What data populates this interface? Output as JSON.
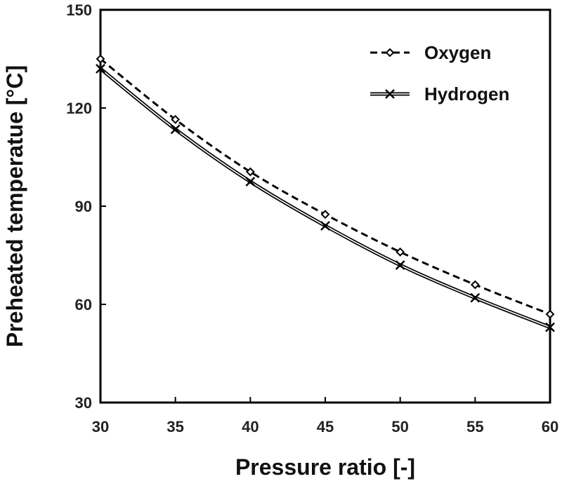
{
  "chart_data": {
    "type": "line",
    "title": "",
    "xlabel": "Pressure ratio [-]",
    "ylabel": "Preheated temperatue [°C]",
    "xlim": [
      30,
      60
    ],
    "ylim": [
      30,
      150
    ],
    "xticks": [
      30,
      35,
      40,
      45,
      50,
      55,
      60
    ],
    "yticks": [
      30,
      60,
      90,
      120,
      150
    ],
    "grid": false,
    "legend_position": "top-right",
    "x": [
      30,
      35,
      40,
      45,
      50,
      55,
      60
    ],
    "series": [
      {
        "name": "Oxygen",
        "marker": "diamond",
        "line": "dashed",
        "color": "#000000",
        "values": [
          135,
          116.5,
          100.5,
          87.5,
          76,
          66,
          57
        ]
      },
      {
        "name": "Hydrogen",
        "marker": "x",
        "line": "double",
        "color": "#000000",
        "values": [
          132,
          113.5,
          97.5,
          84,
          72,
          62,
          53
        ]
      }
    ]
  }
}
